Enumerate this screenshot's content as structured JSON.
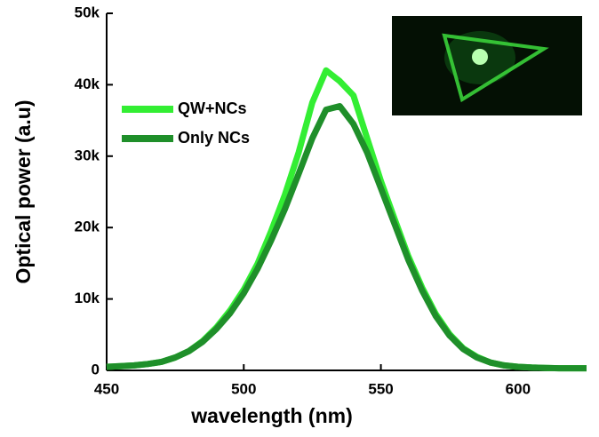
{
  "chart_data": {
    "type": "line",
    "x_label": "wavelength (nm)",
    "y_label": "Optical power (a.u)",
    "x": [
      450,
      455,
      460,
      465,
      470,
      475,
      480,
      485,
      490,
      495,
      500,
      505,
      510,
      515,
      520,
      525,
      530,
      535,
      540,
      545,
      550,
      555,
      560,
      565,
      570,
      575,
      580,
      585,
      590,
      595,
      600,
      605,
      610,
      615,
      620,
      625
    ],
    "series": [
      {
        "name": "QW+NCs",
        "color": "#33ee33",
        "values": [
          500,
          600,
          700,
          900,
          1200,
          1800,
          2700,
          4100,
          6000,
          8400,
          11300,
          14900,
          19500,
          24600,
          30500,
          37500,
          42000,
          40500,
          38500,
          32500,
          26500,
          21200,
          16000,
          11600,
          7900,
          5100,
          3100,
          1900,
          1100,
          700,
          500,
          400,
          350,
          300,
          300,
          300
        ]
      },
      {
        "name": "Only NCs",
        "color": "#1f8f2a",
        "values": [
          500,
          600,
          700,
          900,
          1200,
          1800,
          2700,
          4000,
          5800,
          8000,
          10800,
          14200,
          18200,
          22600,
          27500,
          32500,
          36500,
          37000,
          34500,
          30500,
          25500,
          20500,
          15500,
          11200,
          7600,
          4900,
          3000,
          1800,
          1100,
          700,
          500,
          400,
          350,
          300,
          300,
          300
        ]
      }
    ],
    "xlim": [
      450,
      625
    ],
    "xticks": [
      450,
      500,
      550,
      600
    ],
    "ylim": [
      0,
      50000
    ],
    "yticks": [
      0,
      {
        "value": 10000,
        "label": "10k"
      },
      {
        "value": 20000,
        "label": "20k"
      },
      {
        "value": 30000,
        "label": "30k"
      },
      {
        "value": 40000,
        "label": "40k"
      },
      {
        "value": 50000,
        "label": "50k"
      }
    ]
  }
}
